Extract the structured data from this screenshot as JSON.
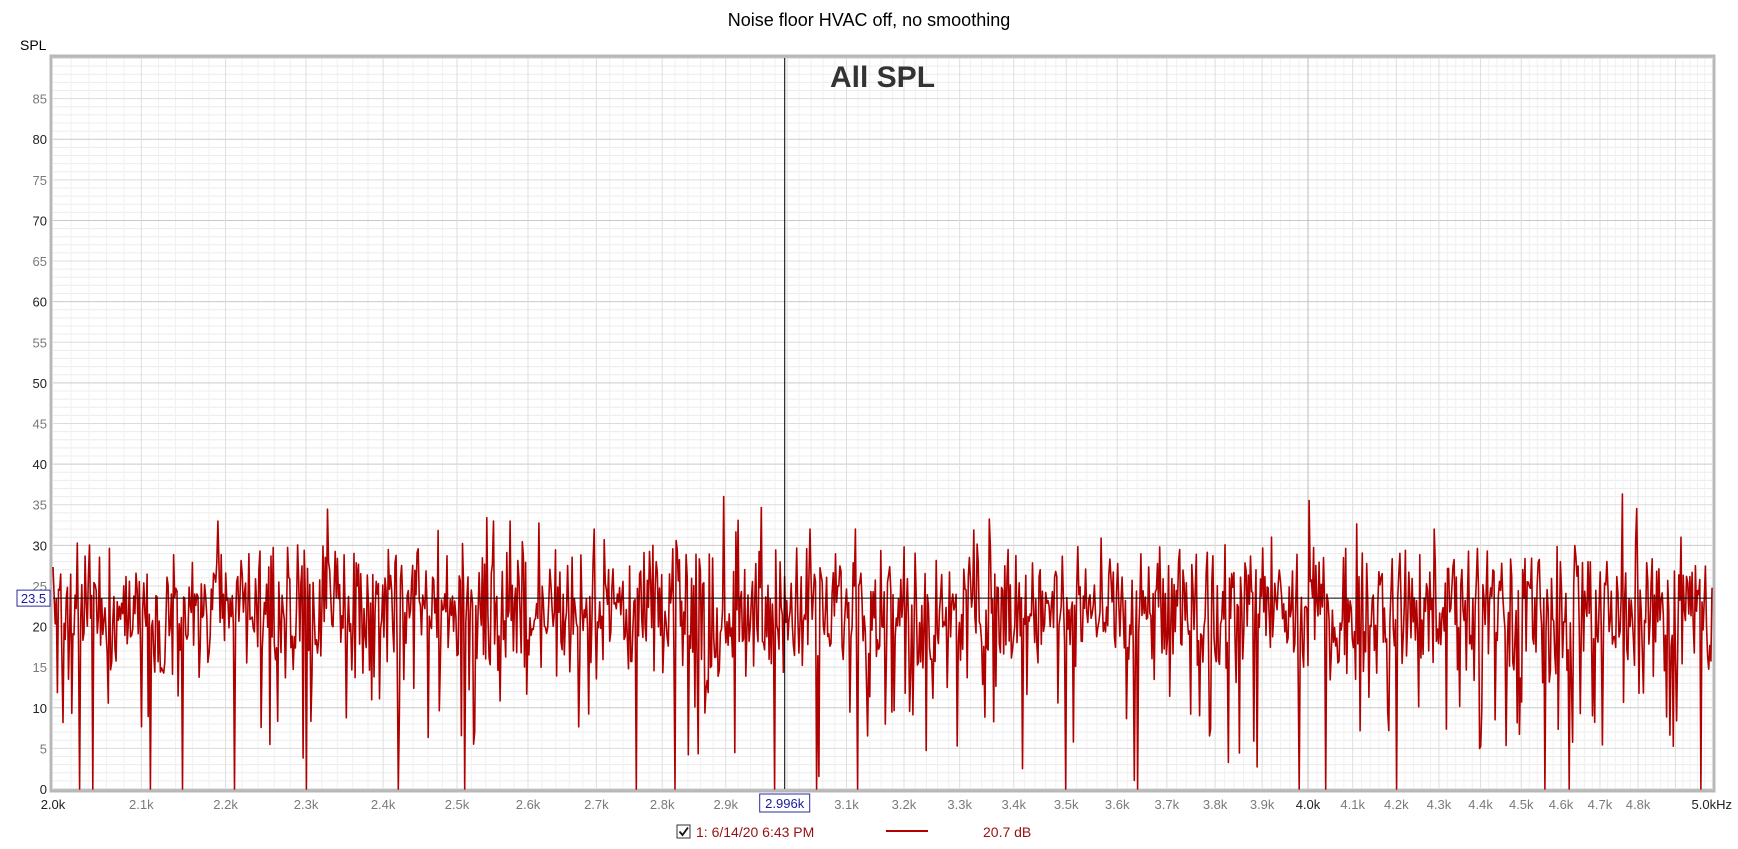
{
  "chart_data": {
    "type": "line",
    "title": "Noise floor HVAC off, no smoothing",
    "ylabel": "SPL",
    "xunit": "kHz",
    "overlay_label": "All SPL",
    "xlim": [
      2000,
      5000
    ],
    "ylim": [
      0,
      90
    ],
    "x_scale": "log",
    "grid": true,
    "y_ticks": [
      {
        "value": 0,
        "label": "0",
        "major": true
      },
      {
        "value": 5,
        "label": "5",
        "major": false
      },
      {
        "value": 10,
        "label": "10",
        "major": true
      },
      {
        "value": 15,
        "label": "15",
        "major": false
      },
      {
        "value": 20,
        "label": "20",
        "major": true
      },
      {
        "value": 25,
        "label": "25",
        "major": false
      },
      {
        "value": 30,
        "label": "30",
        "major": true
      },
      {
        "value": 35,
        "label": "35",
        "major": false
      },
      {
        "value": 40,
        "label": "40",
        "major": true
      },
      {
        "value": 45,
        "label": "45",
        "major": false
      },
      {
        "value": 50,
        "label": "50",
        "major": true
      },
      {
        "value": 55,
        "label": "55",
        "major": false
      },
      {
        "value": 60,
        "label": "60",
        "major": true
      },
      {
        "value": 65,
        "label": "65",
        "major": false
      },
      {
        "value": 70,
        "label": "70",
        "major": true
      },
      {
        "value": 75,
        "label": "75",
        "major": false
      },
      {
        "value": 80,
        "label": "80",
        "major": true
      },
      {
        "value": 85,
        "label": "85",
        "major": false
      }
    ],
    "x_ticks": [
      {
        "value": 2000,
        "label": "2.0k",
        "major": true
      },
      {
        "value": 2100,
        "label": "2.1k",
        "major": false
      },
      {
        "value": 2200,
        "label": "2.2k",
        "major": false
      },
      {
        "value": 2300,
        "label": "2.3k",
        "major": false
      },
      {
        "value": 2400,
        "label": "2.4k",
        "major": false
      },
      {
        "value": 2500,
        "label": "2.5k",
        "major": false
      },
      {
        "value": 2600,
        "label": "2.6k",
        "major": false
      },
      {
        "value": 2700,
        "label": "2.7k",
        "major": false
      },
      {
        "value": 2800,
        "label": "2.8k",
        "major": false
      },
      {
        "value": 2900,
        "label": "2.9k",
        "major": false
      },
      {
        "value": 3100,
        "label": "3.1k",
        "major": false
      },
      {
        "value": 3200,
        "label": "3.2k",
        "major": false
      },
      {
        "value": 3300,
        "label": "3.3k",
        "major": false
      },
      {
        "value": 3400,
        "label": "3.4k",
        "major": false
      },
      {
        "value": 3500,
        "label": "3.5k",
        "major": false
      },
      {
        "value": 3600,
        "label": "3.6k",
        "major": false
      },
      {
        "value": 3700,
        "label": "3.7k",
        "major": false
      },
      {
        "value": 3800,
        "label": "3.8k",
        "major": false
      },
      {
        "value": 3900,
        "label": "3.9k",
        "major": false
      },
      {
        "value": 4000,
        "label": "4.0k",
        "major": true
      },
      {
        "value": 4100,
        "label": "4.1k",
        "major": false
      },
      {
        "value": 4200,
        "label": "4.2k",
        "major": false
      },
      {
        "value": 4300,
        "label": "4.3k",
        "major": false
      },
      {
        "value": 4400,
        "label": "4.4k",
        "major": false
      },
      {
        "value": 4500,
        "label": "4.5k",
        "major": false
      },
      {
        "value": 4600,
        "label": "4.6k",
        "major": false
      },
      {
        "value": 4700,
        "label": "4.7k",
        "major": false
      },
      {
        "value": 4800,
        "label": "4.8k",
        "major": false
      },
      {
        "value": 5000,
        "label": "5.0kHz",
        "major": true
      }
    ],
    "cursor": {
      "x": 2996,
      "y": 23.5,
      "x_label": "2.996k",
      "y_label": "23.5"
    },
    "series": [
      {
        "name": "1: 6/14/20 6:43 PM",
        "color": "#b00000",
        "legend_value": "20.7 dB",
        "visible": true,
        "x_range": [
          2000,
          5000
        ],
        "points_count": 1500,
        "mean_spl": 20.5,
        "typical_range": [
          8,
          30
        ],
        "peak_values": [
          {
            "x": 2191,
            "y": 33
          },
          {
            "x": 2551,
            "y": 33
          },
          {
            "x": 2575,
            "y": 33
          },
          {
            "x": 2696,
            "y": 32
          },
          {
            "x": 3039,
            "y": 32
          },
          {
            "x": 3115,
            "y": 32
          },
          {
            "x": 4290,
            "y": 32
          },
          {
            "x": 4915,
            "y": 31
          }
        ],
        "dropouts_to_zero": [
          2030,
          2045,
          2110,
          2148,
          2300,
          2420,
          2510,
          2760,
          2820,
          2980,
          3050,
          3120,
          3500,
          3640,
          3980,
          4040,
          4200,
          4560,
          4620,
          4970
        ]
      }
    ]
  },
  "legend": {
    "checkbox_checked": true,
    "entry_label": "1: 6/14/20 6:43 PM",
    "entry_value": "20.7 dB"
  }
}
